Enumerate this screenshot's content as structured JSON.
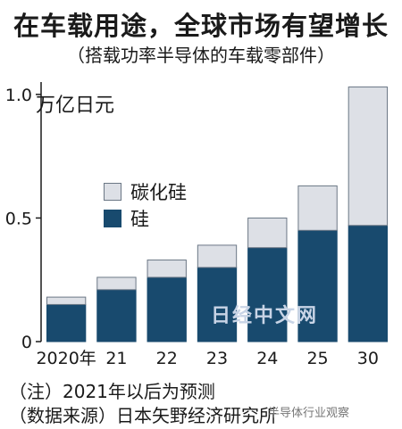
{
  "header": {
    "title": "在车载用途，全球市场有望增长",
    "subtitle": "（搭载功率半导体的车载零部件）"
  },
  "chart_data": {
    "type": "bar",
    "stacked": true,
    "categories": [
      "2020年",
      "21",
      "22",
      "23",
      "24",
      "25",
      "30"
    ],
    "series": [
      {
        "name": "硅",
        "color": "#184a6e",
        "values": [
          0.15,
          0.21,
          0.26,
          0.3,
          0.38,
          0.45,
          0.47
        ]
      },
      {
        "name": "碳化硅",
        "color": "#dde0e6",
        "values": [
          0.03,
          0.05,
          0.07,
          0.09,
          0.12,
          0.18,
          0.56
        ]
      }
    ],
    "ylim": [
      0,
      1.05
    ],
    "yticks": [
      0,
      0.5,
      1.0
    ],
    "ytick_labels": [
      "0",
      "0.5",
      "1.0"
    ],
    "ylabel": "万亿日元",
    "legend_position": "top-left"
  },
  "legend": [
    {
      "label": "碳化硅",
      "color": "#dde0e6"
    },
    {
      "label": "硅",
      "color": "#184a6e"
    }
  ],
  "notes": {
    "line1": "（注）2021年以后为预测",
    "line2": "（数据来源）日本矢野经济研究所"
  },
  "watermarks": {
    "center": "日经中文网",
    "corner": "半导体行业观察"
  }
}
